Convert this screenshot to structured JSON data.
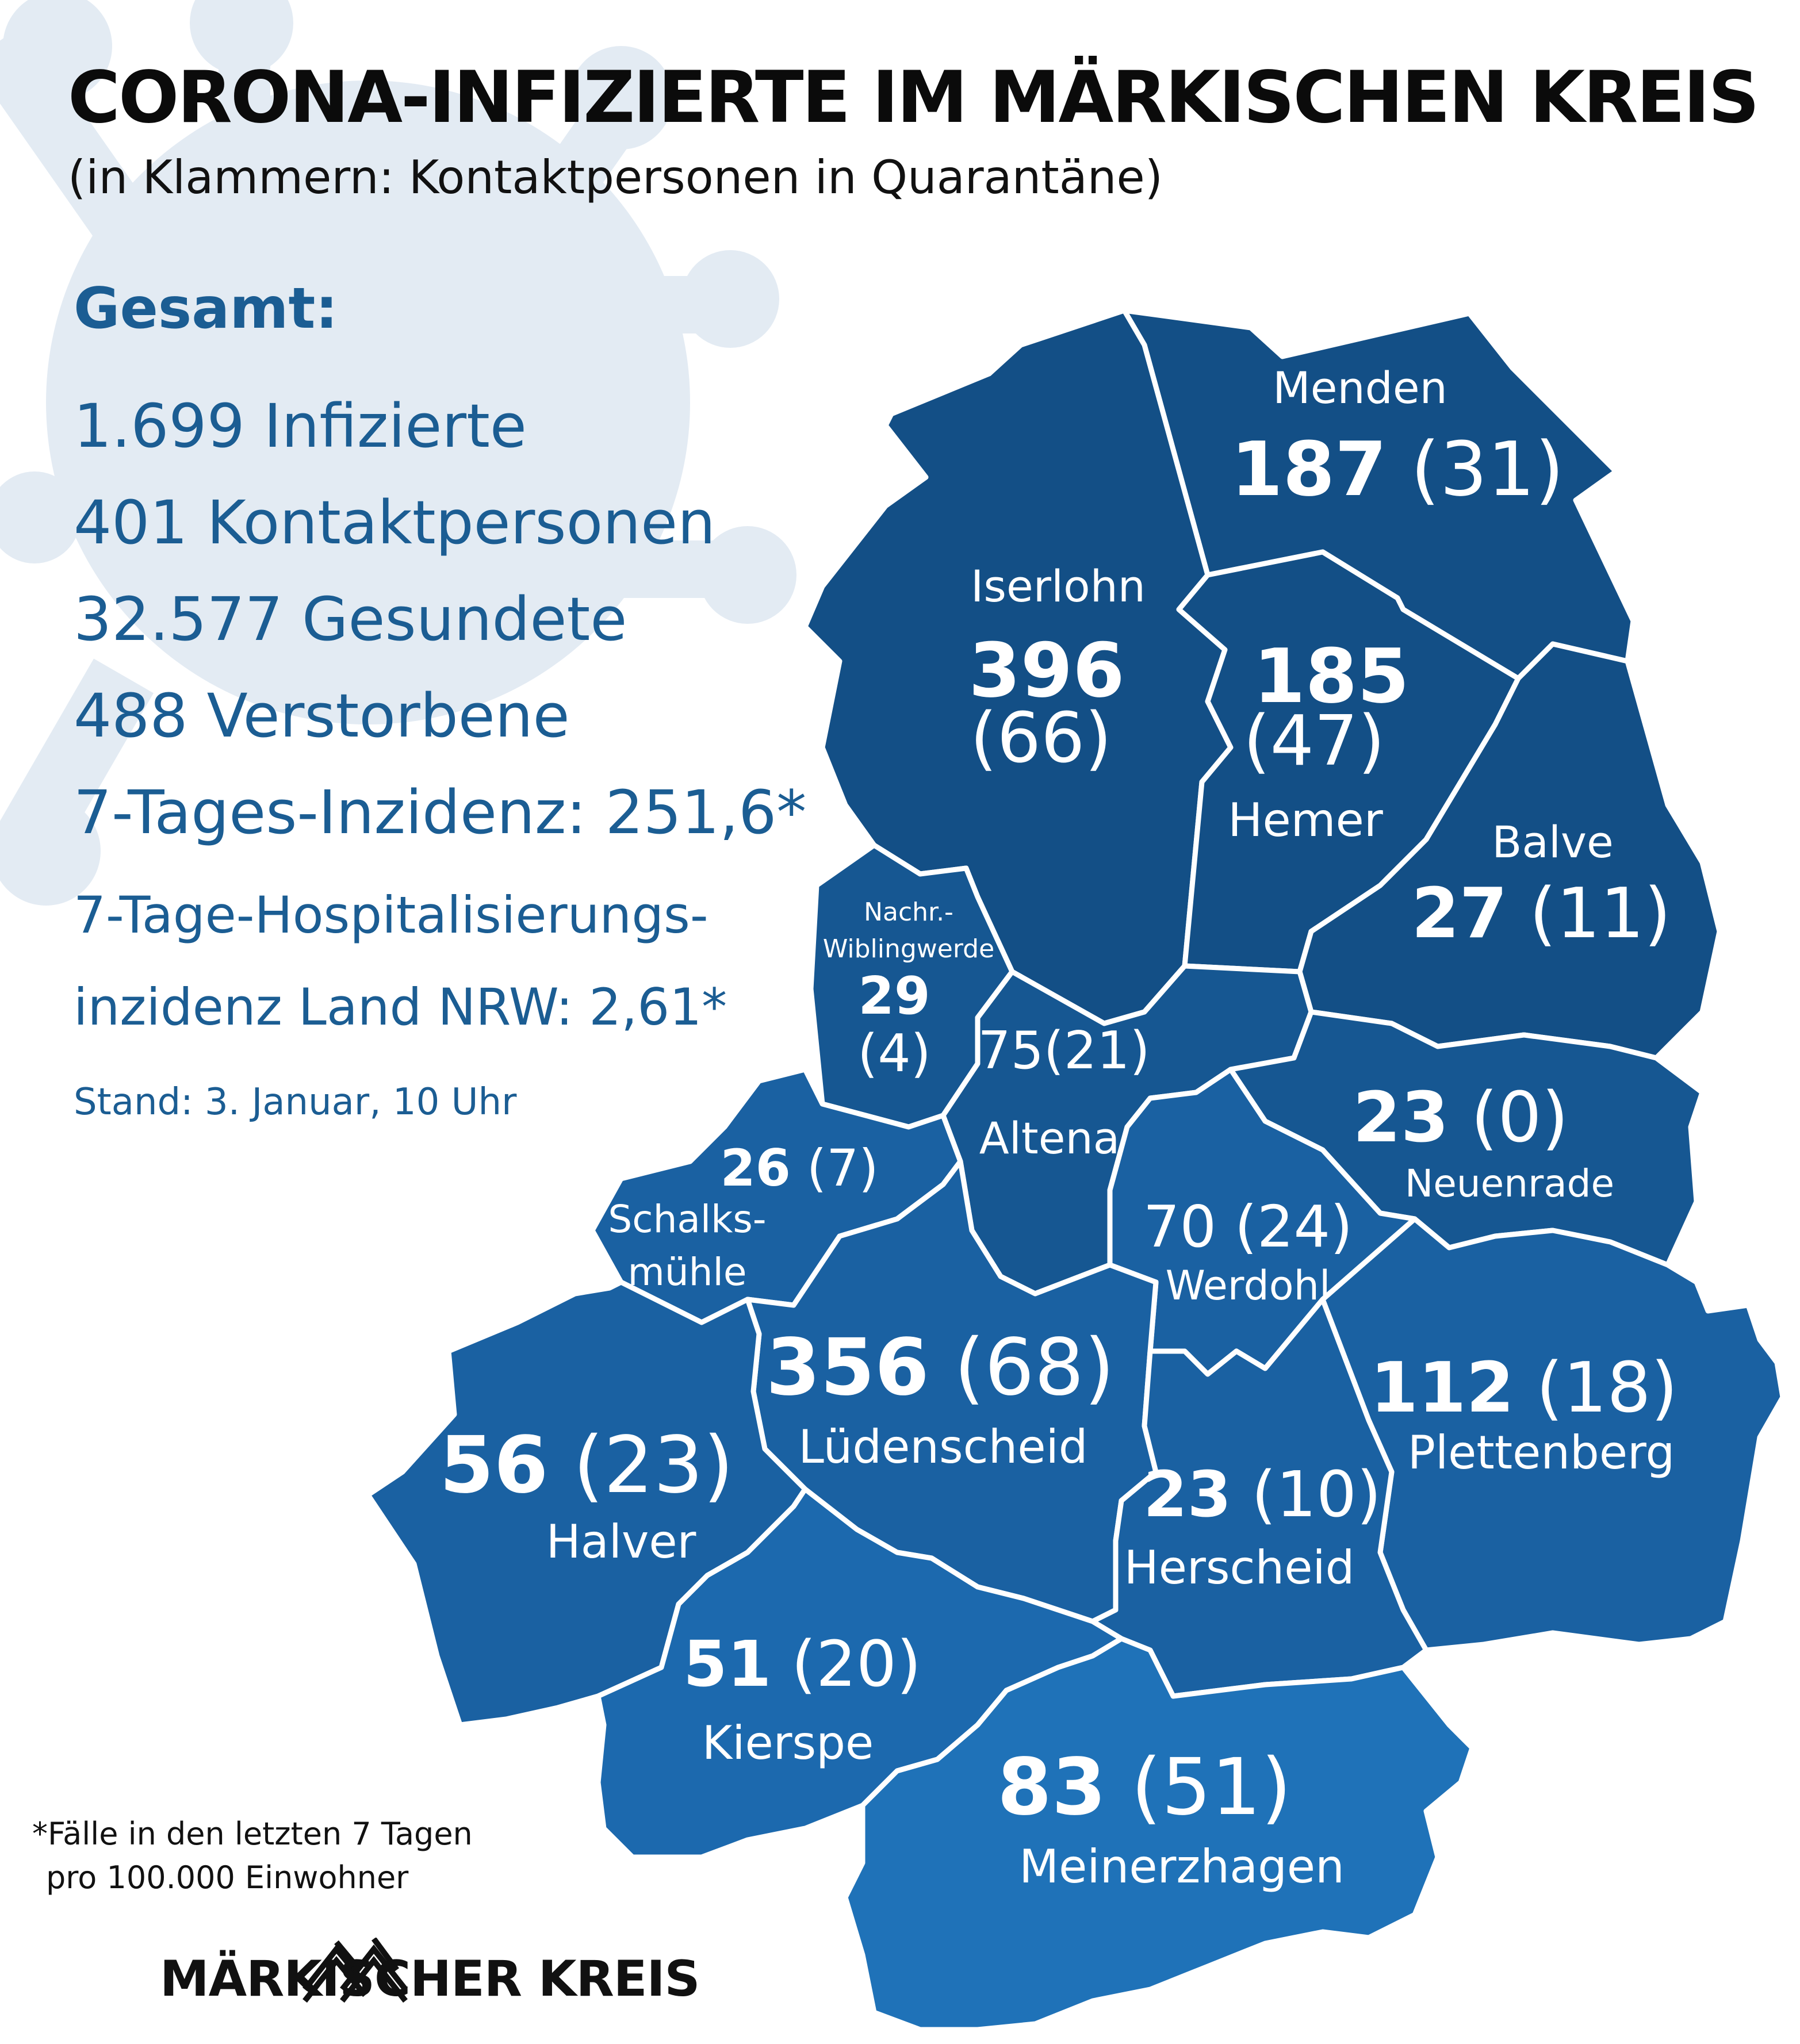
{
  "header": {
    "title": "CORONA-INFIZIERTE IM MÄRKISCHEN KREIS",
    "subtitle": "(in Klammern: Kontaktpersonen in Quarantäne)"
  },
  "summary": {
    "heading": "Gesamt:",
    "infected": "1.699 Infizierte",
    "contacts": "401 Kontaktpersonen",
    "recovered": "32.577 Gesundete",
    "deceased": "488 Verstorbene",
    "incidence": "7-Tages-Inzidenz: 251,6*",
    "hospital_line1": "7-Tage-Hospitalisierungs-",
    "hospital_line2": "inzidenz Land NRW: 2,61*",
    "stand": "Stand: 3. Januar, 10 Uhr"
  },
  "footnote": {
    "line1": "*Fälle in den letzten 7 Tagen",
    "line2": "pro 100.000 Einwohner"
  },
  "logo": {
    "text": "MÄRKISCHER KREIS"
  },
  "colors": {
    "dark": "#134f86",
    "mid": "#1a61a2",
    "light": "#1f72b8",
    "text": "#1b5d93"
  },
  "regions": {
    "menden": {
      "name": "Menden",
      "cases": "187",
      "contacts": "(31)"
    },
    "iserlohn": {
      "name": "Iserlohn",
      "cases": "396",
      "contacts": "(66)"
    },
    "hemer": {
      "name": "Hemer",
      "cases": "185",
      "contacts": "(47)"
    },
    "balve": {
      "name": "Balve",
      "cases": "27",
      "contacts": "(11)"
    },
    "nachrodt": {
      "name_line1": "Nachr.-",
      "name_line2": "Wiblingwerde",
      "cases": "29",
      "contacts": "(4)"
    },
    "altena": {
      "name": "Altena",
      "cases": "75",
      "contacts": "(21)"
    },
    "neuenrade": {
      "name": "Neuenrade",
      "cases": "23",
      "contacts": "(0)"
    },
    "schalksmuehle": {
      "name_line1": "Schalks-",
      "name_line2": "mühle",
      "cases": "26",
      "contacts": "(7)"
    },
    "werdohl": {
      "name": "Werdohl",
      "cases": "70",
      "contacts": "(24)"
    },
    "luedenscheid": {
      "name": "Lüdenscheid",
      "cases": "356",
      "contacts": "(68)"
    },
    "plettenberg": {
      "name": "Plettenberg",
      "cases": "112",
      "contacts": "(18)"
    },
    "halver": {
      "name": "Halver",
      "cases": "56",
      "contacts": "(23)"
    },
    "herscheid": {
      "name": "Herscheid",
      "cases": "23",
      "contacts": "(10)"
    },
    "kierspe": {
      "name": "Kierspe",
      "cases": "51",
      "contacts": "(20)"
    },
    "meinerzhagen": {
      "name": "Meinerzhagen",
      "cases": "83",
      "contacts": "(51)"
    }
  }
}
